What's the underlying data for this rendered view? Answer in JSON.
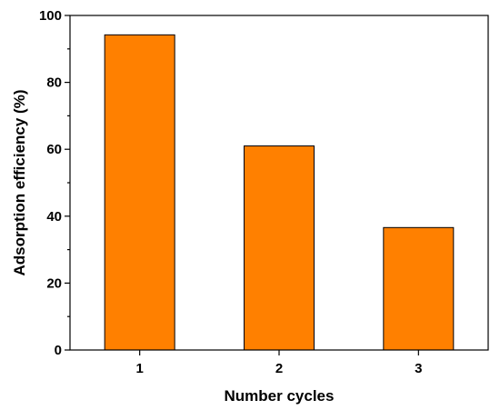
{
  "chart_data": {
    "type": "bar",
    "title": "",
    "xlabel": "Number cycles",
    "ylabel": "Adsorption efficiency (%)",
    "categories": [
      "1",
      "2",
      "3"
    ],
    "values": [
      94.2,
      61.0,
      36.6
    ],
    "ylim": [
      0,
      100
    ],
    "yticks": [
      0,
      20,
      40,
      60,
      80,
      100
    ],
    "y_minor_step": 10,
    "bar_color": "#ff8000",
    "grid": false,
    "legend": "none"
  }
}
